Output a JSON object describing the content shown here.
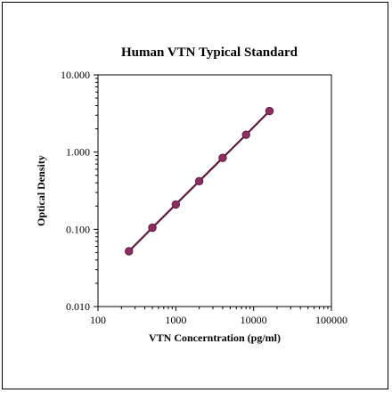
{
  "chart_data": {
    "type": "line",
    "title": "Human VTN Typical Standard",
    "xlabel": "VTN Concerntration (pg/ml)",
    "ylabel": "Optical Density",
    "x_scale": "log",
    "y_scale": "log",
    "xlim": [
      100,
      100000
    ],
    "ylim": [
      0.01,
      10
    ],
    "x_ticks": [
      "100",
      "1000",
      "10000",
      "100000"
    ],
    "y_ticks": [
      "0.010",
      "0.100",
      "1.000",
      "10.000"
    ],
    "grid": false,
    "legend": "none",
    "series": [
      {
        "x": [
          250,
          500,
          1000,
          2000,
          4000,
          8000,
          16000
        ],
        "y": [
          0.052,
          0.105,
          0.21,
          0.42,
          0.84,
          1.68,
          3.4
        ]
      }
    ],
    "colors": {
      "line": "#5c1a3a",
      "marker": "#8e2f63",
      "marker_edge": "#5c1a3a"
    }
  }
}
